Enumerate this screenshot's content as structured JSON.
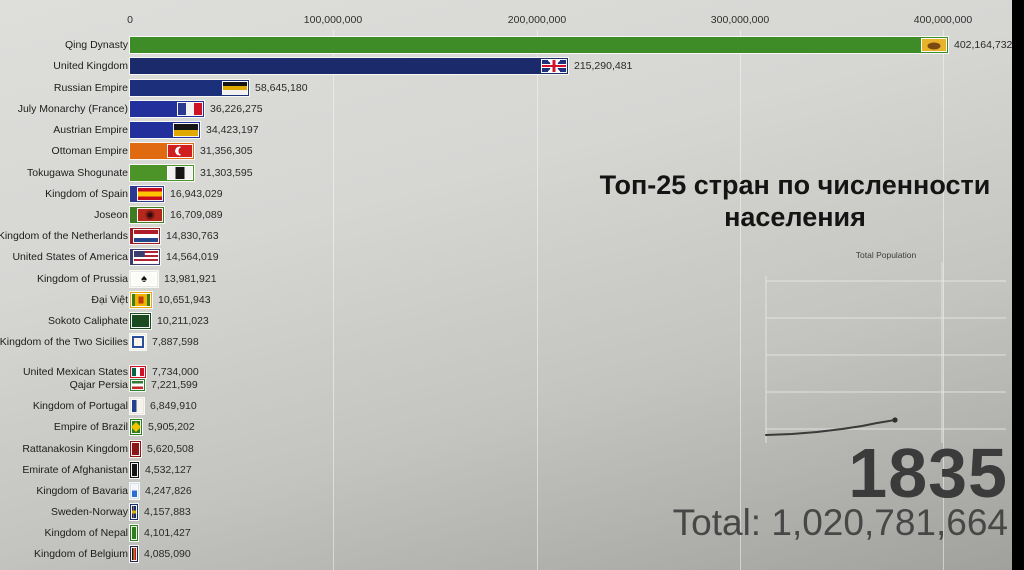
{
  "window_title": "Топ-25 стран по численности населения — 1835",
  "axis": {
    "ticks": [
      "0",
      "100,000,000",
      "200,000,000",
      "300,000,000",
      "400,000,000"
    ]
  },
  "overlay": {
    "title": "Топ-25 стран по численности населения",
    "mini_chart_title": "Total Population",
    "year": "1835",
    "total": "Total: 1,020,781,664"
  },
  "colors": {
    "background_top": "#dededb",
    "background_bottom": "#a0a09c",
    "letterbox": "#000000",
    "year_text": "#3b3b3b",
    "title_text": "#141414"
  },
  "chart_data": [
    {
      "type": "bar",
      "orientation": "horizontal",
      "title": "Топ-25 стран по численности населения",
      "year": 1835,
      "total_population": 1020781664,
      "xlim": [
        0,
        400000000
      ],
      "x_ticks": [
        0,
        100000000,
        200000000,
        300000000,
        400000000
      ],
      "grid": true,
      "items": [
        {
          "name": "Qing Dynasty",
          "value": 402164732,
          "label": "402,164,732",
          "color": "#3e8c28",
          "flag": "qing"
        },
        {
          "name": "United Kingdom",
          "value": 215290481,
          "label": "215,290,481",
          "color": "#1b2a6b",
          "flag": "uk"
        },
        {
          "name": "Russian Empire",
          "value": 58645180,
          "label": "58,645,180",
          "color": "#1b2f7a",
          "flag": "russia"
        },
        {
          "name": "July Monarchy (France)",
          "value": 36226275,
          "label": "36,226,275",
          "color": "#22309b",
          "flag": "france"
        },
        {
          "name": "Austrian Empire",
          "value": 34423197,
          "label": "34,423,197",
          "color": "#22309b",
          "flag": "austria"
        },
        {
          "name": "Ottoman Empire",
          "value": 31356305,
          "label": "31,356,305",
          "color": "#e06a10",
          "flag": "ottoman"
        },
        {
          "name": "Tokugawa Shogunate",
          "value": 31303595,
          "label": "31,303,595",
          "color": "#4d9428",
          "flag": "tokugawa"
        },
        {
          "name": "Kingdom of Spain",
          "value": 16943029,
          "label": "16,943,029",
          "color": "#2b3a8f",
          "flag": "spain"
        },
        {
          "name": "Joseon",
          "value": 16709089,
          "label": "16,709,089",
          "color": "#3f7d23",
          "flag": "joseon"
        },
        {
          "name": "Kingdom of the Netherlands",
          "value": 14830763,
          "label": "14,830,763",
          "color": "#9a1b28",
          "flag": "netherlands"
        },
        {
          "name": "United States of America",
          "value": 14564019,
          "label": "14,564,019",
          "color": "#3c3b6e",
          "flag": "usa"
        },
        {
          "name": "Kingdom of Prussia",
          "value": 13981921,
          "label": "13,981,921",
          "color": "#e8e8e6",
          "flag": "prussia"
        },
        {
          "name": "Đại Việt",
          "value": 10651943,
          "label": "10,651,943",
          "color": "#e8a90d",
          "flag": "daiviet"
        },
        {
          "name": "Sokoto Caliphate",
          "value": 10211023,
          "label": "10,211,023",
          "color": "#1b4a21",
          "flag": "sokoto"
        },
        {
          "name": "Kingdom of the Two Sicilies",
          "value": 7887598,
          "label": "7,887,598",
          "color": "#f2ede2",
          "flag": "twosicilies"
        },
        {
          "name": "United Mexican States",
          "value": 7734000,
          "label": "7,734,000",
          "color": "#ce1126",
          "flag": "mexico"
        },
        {
          "name": "Qajar Persia",
          "value": 7221599,
          "label": "7,221,599",
          "color": "#2e7d32",
          "flag": "qajar"
        },
        {
          "name": "Kingdom of Portugal",
          "value": 6849910,
          "label": "6,849,910",
          "color": "#ece6da",
          "flag": "portugal"
        },
        {
          "name": "Empire of Brazil",
          "value": 5905202,
          "label": "5,905,202",
          "color": "#2f7d1f",
          "flag": "brazil"
        },
        {
          "name": "Rattanakosin Kingdom",
          "value": 5620508,
          "label": "5,620,508",
          "color": "#8c1717",
          "flag": "rattanakosin"
        },
        {
          "name": "Emirate of Afghanistan",
          "value": 4532127,
          "label": "4,532,127",
          "color": "#151515",
          "flag": "afghanistan"
        },
        {
          "name": "Kingdom of Bavaria",
          "value": 4247826,
          "label": "4,247,826",
          "color": "#cfe0ee",
          "flag": "bavaria"
        },
        {
          "name": "Sweden-Norway",
          "value": 4157883,
          "label": "4,157,883",
          "color": "#1c2e6e",
          "flag": "swedennorway"
        },
        {
          "name": "Kingdom of Nepal",
          "value": 4101427,
          "label": "4,101,427",
          "color": "#2e7d1f",
          "flag": "nepal"
        },
        {
          "name": "Kingdom of Belgium",
          "value": 4085090,
          "label": "4,085,090",
          "color": "#20254f",
          "flag": "belgium"
        }
      ]
    },
    {
      "type": "line",
      "title": "Total Population",
      "x_end": 1835,
      "y_end": 1020781664,
      "trend": "rising, shallow slope with endpoint dot at year 1835",
      "tick_labels_visible": false,
      "grid": true
    }
  ]
}
